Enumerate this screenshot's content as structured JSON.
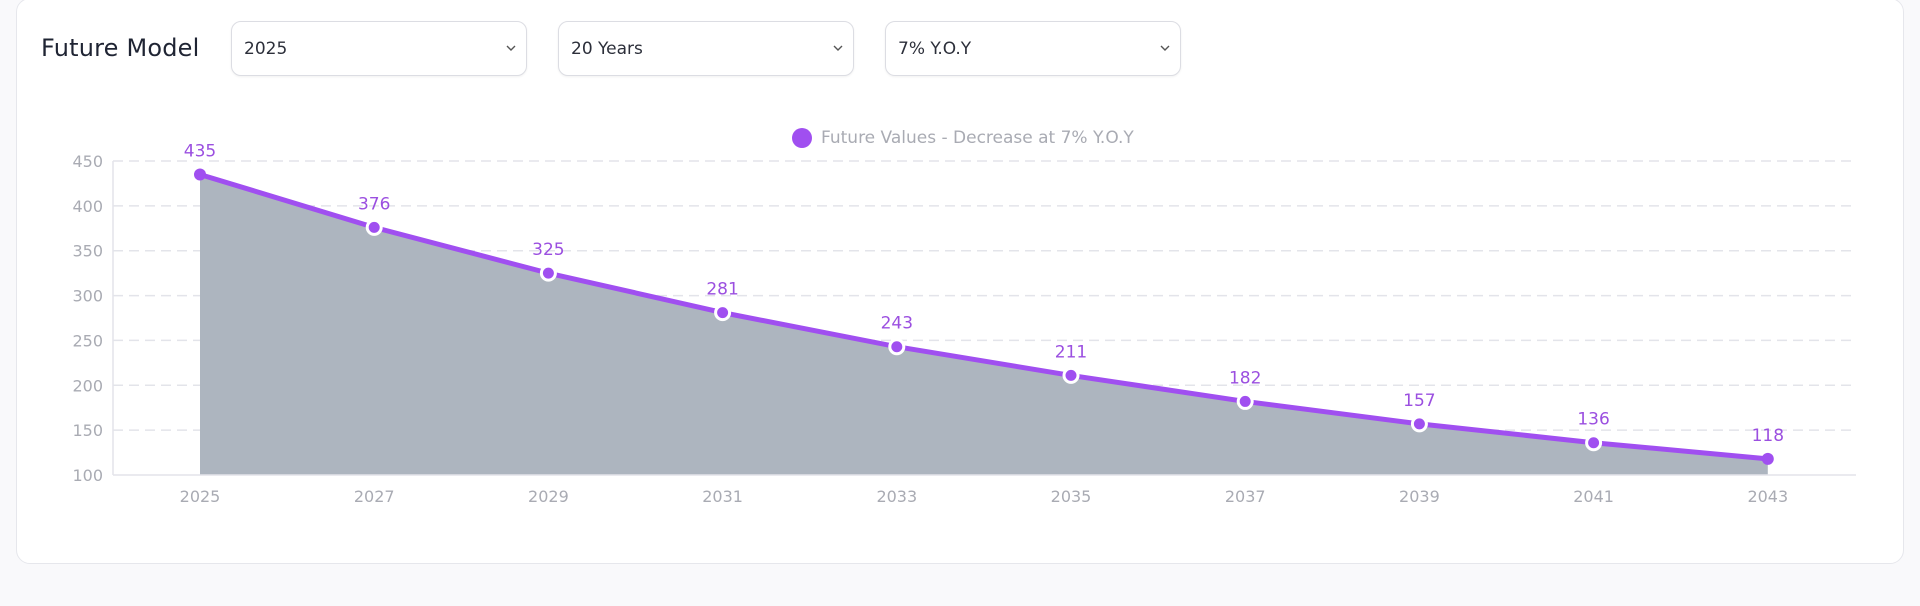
{
  "header": {
    "title": "Future Model"
  },
  "filters": {
    "year": "2025",
    "duration": "20 Years",
    "rate": "7% Y.O.Y"
  },
  "colors": {
    "line": "#a04ff0",
    "area": "#adb5bf",
    "label": "#9b4fe0"
  },
  "chart_data": {
    "type": "area",
    "x": [
      "2025",
      "2027",
      "2029",
      "2031",
      "2033",
      "2035",
      "2037",
      "2039",
      "2041",
      "2043"
    ],
    "series": [
      {
        "name": "Future Values - Decrease at 7% Y.O.Y",
        "values": [
          435,
          376,
          325,
          281,
          243,
          211,
          182,
          157,
          136,
          118
        ]
      }
    ],
    "data_labels": [
      "435",
      "376",
      "325",
      "281",
      "243",
      "211",
      "182",
      "157",
      "136",
      "118"
    ],
    "y_ticks": [
      100,
      150,
      200,
      250,
      300,
      350,
      400,
      450
    ],
    "ylim": [
      100,
      450
    ],
    "grid": true,
    "legend_position": "top-center"
  }
}
